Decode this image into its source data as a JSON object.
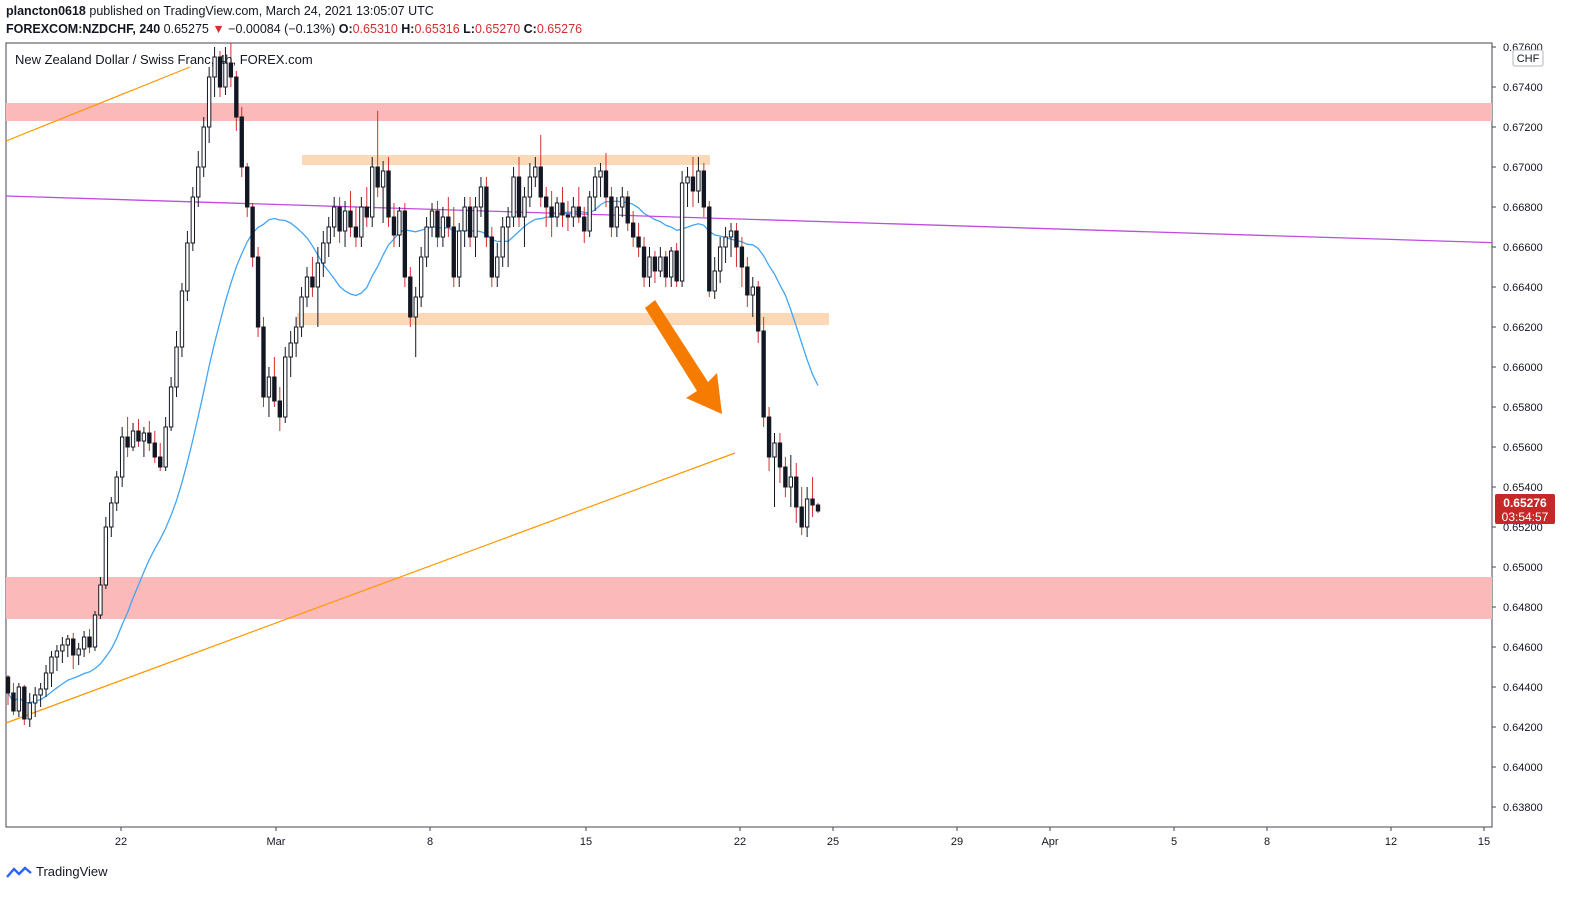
{
  "header": {
    "publisher": "plancton0618",
    "published_on": "published on TradingView.com, March 24, 2021 13:05:07 UTC",
    "symbol": "FOREXCOM:NZDCHF, 240",
    "last": "0.65275",
    "change_arrow": "▼",
    "change": "−0.00084 (−0.13%)",
    "o_label": "O:",
    "o_value": "0.65310",
    "h_label": "H:",
    "h_value": "0.65316",
    "l_label": "L:",
    "l_value": "0.65270",
    "c_label": "C:",
    "c_value": "0.65276",
    "down_color": "#d32f2f"
  },
  "chart_data": {
    "type": "candlestick",
    "title": "New Zealand Dollar / Swiss Franc, 4h, FOREX.com",
    "currency_badge": "CHF",
    "ylim": [
      0.637,
      0.6762
    ],
    "y_ticks": [
      "0.67600",
      "0.67400",
      "0.67200",
      "0.67000",
      "0.66800",
      "0.66600",
      "0.66400",
      "0.66200",
      "0.66000",
      "0.65800",
      "0.65600",
      "0.65400",
      "0.65200",
      "0.65000",
      "0.64800",
      "0.64600",
      "0.64400",
      "0.64200",
      "0.64000",
      "0.63800"
    ],
    "x_ticks": [
      "22",
      "Mar",
      "8",
      "15",
      "22",
      "25",
      "29",
      "Apr",
      "5",
      "8",
      "12",
      "15"
    ],
    "last_price_label": "0.65276",
    "countdown_label": "03:54:57",
    "colors": {
      "up": "#131722",
      "down": "#131722",
      "wick_down": "#d32f2f",
      "ma": "#42a5f5",
      "trendline": "#ff9800",
      "resistance_line": "#c04ce0",
      "zone_red": "#fcb9b9",
      "zone_orange": "#fcd9b6",
      "arrow": "#f57c00",
      "price_tag": "#c62828"
    },
    "series": [
      {
        "name": "",
        "kind": "ohlc",
        "values": [
          [
            0.6445,
            0.6446,
            0.6431,
            0.6437
          ],
          [
            0.6437,
            0.6442,
            0.6426,
            0.6428
          ],
          [
            0.6428,
            0.6442,
            0.6425,
            0.644
          ],
          [
            0.644,
            0.6441,
            0.6421,
            0.6424
          ],
          [
            0.6424,
            0.6437,
            0.642,
            0.6432
          ],
          [
            0.6432,
            0.644,
            0.6425,
            0.6436
          ],
          [
            0.6436,
            0.6442,
            0.643,
            0.6439
          ],
          [
            0.6439,
            0.6451,
            0.6435,
            0.6447
          ],
          [
            0.6447,
            0.6458,
            0.644,
            0.6455
          ],
          [
            0.6455,
            0.6461,
            0.6448,
            0.6458
          ],
          [
            0.6458,
            0.6465,
            0.6452,
            0.6461
          ],
          [
            0.6461,
            0.6466,
            0.6455,
            0.6464
          ],
          [
            0.6464,
            0.6467,
            0.6449,
            0.6456
          ],
          [
            0.6456,
            0.6462,
            0.6451,
            0.6459
          ],
          [
            0.6459,
            0.6468,
            0.6455,
            0.6465
          ],
          [
            0.6465,
            0.6469,
            0.6457,
            0.646
          ],
          [
            0.646,
            0.6478,
            0.6458,
            0.6476
          ],
          [
            0.6476,
            0.6495,
            0.6474,
            0.6491
          ],
          [
            0.6491,
            0.6525,
            0.6489,
            0.652
          ],
          [
            0.652,
            0.6535,
            0.6515,
            0.6532
          ],
          [
            0.6532,
            0.6548,
            0.6528,
            0.6545
          ],
          [
            0.6545,
            0.657,
            0.654,
            0.6565
          ],
          [
            0.6565,
            0.6575,
            0.6555,
            0.656
          ],
          [
            0.656,
            0.6572,
            0.6558,
            0.6568
          ],
          [
            0.6568,
            0.6574,
            0.656,
            0.6563
          ],
          [
            0.6563,
            0.657,
            0.6555,
            0.6567
          ],
          [
            0.6567,
            0.6573,
            0.6558,
            0.6562
          ],
          [
            0.6562,
            0.6568,
            0.6552,
            0.6555
          ],
          [
            0.6555,
            0.6562,
            0.6548,
            0.655
          ],
          [
            0.655,
            0.6575,
            0.6548,
            0.657
          ],
          [
            0.657,
            0.6595,
            0.6568,
            0.659
          ],
          [
            0.659,
            0.6618,
            0.6585,
            0.661
          ],
          [
            0.661,
            0.6642,
            0.6605,
            0.6638
          ],
          [
            0.6638,
            0.6668,
            0.6633,
            0.6662
          ],
          [
            0.6662,
            0.669,
            0.6658,
            0.6685
          ],
          [
            0.6685,
            0.6708,
            0.668,
            0.67
          ],
          [
            0.67,
            0.6725,
            0.6695,
            0.672
          ],
          [
            0.672,
            0.675,
            0.6712,
            0.6745
          ],
          [
            0.6745,
            0.676,
            0.6735,
            0.6755
          ],
          [
            0.6755,
            0.6758,
            0.6735,
            0.674
          ],
          [
            0.674,
            0.676,
            0.6736,
            0.6752
          ],
          [
            0.6752,
            0.6762,
            0.674,
            0.6745
          ],
          [
            0.6745,
            0.6748,
            0.6718,
            0.6725
          ],
          [
            0.6725,
            0.673,
            0.6695,
            0.67
          ],
          [
            0.67,
            0.6702,
            0.6675,
            0.668
          ],
          [
            0.668,
            0.6682,
            0.665,
            0.6655
          ],
          [
            0.6655,
            0.666,
            0.6615,
            0.662
          ],
          [
            0.662,
            0.6625,
            0.658,
            0.6585
          ],
          [
            0.6585,
            0.66,
            0.6575,
            0.6595
          ],
          [
            0.6595,
            0.6605,
            0.658,
            0.6583
          ],
          [
            0.6583,
            0.659,
            0.6568,
            0.6575
          ],
          [
            0.6575,
            0.661,
            0.6572,
            0.6605
          ],
          [
            0.6605,
            0.6618,
            0.6595,
            0.6612
          ],
          [
            0.6612,
            0.6625,
            0.6605,
            0.662
          ],
          [
            0.662,
            0.664,
            0.6615,
            0.6635
          ],
          [
            0.6635,
            0.665,
            0.663,
            0.6645
          ],
          [
            0.6645,
            0.6655,
            0.6635,
            0.664
          ],
          [
            0.664,
            0.666,
            0.662,
            0.6652
          ],
          [
            0.6652,
            0.6668,
            0.6645,
            0.6662
          ],
          [
            0.6662,
            0.6675,
            0.6655,
            0.667
          ],
          [
            0.667,
            0.6685,
            0.6665,
            0.668
          ],
          [
            0.668,
            0.6685,
            0.6662,
            0.6668
          ],
          [
            0.6668,
            0.6683,
            0.666,
            0.6678
          ],
          [
            0.6678,
            0.6688,
            0.6665,
            0.667
          ],
          [
            0.667,
            0.668,
            0.666,
            0.6665
          ],
          [
            0.6665,
            0.6685,
            0.666,
            0.668
          ],
          [
            0.668,
            0.669,
            0.667,
            0.6675
          ],
          [
            0.6675,
            0.6705,
            0.667,
            0.67
          ],
          [
            0.67,
            0.6728,
            0.6685,
            0.669
          ],
          [
            0.669,
            0.6703,
            0.6672,
            0.6698
          ],
          [
            0.6698,
            0.6705,
            0.667,
            0.6675
          ],
          [
            0.6675,
            0.6682,
            0.666,
            0.6666
          ],
          [
            0.6666,
            0.668,
            0.666,
            0.6678
          ],
          [
            0.6678,
            0.6682,
            0.664,
            0.6645
          ],
          [
            0.6645,
            0.665,
            0.662,
            0.6625
          ],
          [
            0.6625,
            0.664,
            0.6605,
            0.6635
          ],
          [
            0.6635,
            0.666,
            0.663,
            0.6655
          ],
          [
            0.6655,
            0.6675,
            0.665,
            0.667
          ],
          [
            0.667,
            0.6682,
            0.6665,
            0.6678
          ],
          [
            0.6678,
            0.6683,
            0.666,
            0.6665
          ],
          [
            0.6665,
            0.668,
            0.666,
            0.6675
          ],
          [
            0.6675,
            0.6685,
            0.6665,
            0.667
          ],
          [
            0.667,
            0.668,
            0.664,
            0.6645
          ],
          [
            0.6645,
            0.6672,
            0.664,
            0.6668
          ],
          [
            0.6668,
            0.6685,
            0.666,
            0.668
          ],
          [
            0.668,
            0.6685,
            0.666,
            0.6665
          ],
          [
            0.6665,
            0.6685,
            0.6655,
            0.668
          ],
          [
            0.668,
            0.6695,
            0.6675,
            0.669
          ],
          [
            0.669,
            0.6695,
            0.666,
            0.6665
          ],
          [
            0.6665,
            0.667,
            0.664,
            0.6645
          ],
          [
            0.6645,
            0.6662,
            0.664,
            0.6655
          ],
          [
            0.6655,
            0.6675,
            0.665,
            0.667
          ],
          [
            0.667,
            0.668,
            0.665,
            0.6675
          ],
          [
            0.6675,
            0.67,
            0.667,
            0.6695
          ],
          [
            0.6695,
            0.6705,
            0.667,
            0.6675
          ],
          [
            0.6675,
            0.669,
            0.666,
            0.6685
          ],
          [
            0.6685,
            0.6702,
            0.668,
            0.6695
          ],
          [
            0.6695,
            0.6705,
            0.669,
            0.67
          ],
          [
            0.67,
            0.6716,
            0.668,
            0.6685
          ],
          [
            0.6685,
            0.669,
            0.667,
            0.668
          ],
          [
            0.668,
            0.6688,
            0.6665,
            0.6675
          ],
          [
            0.6675,
            0.6685,
            0.667,
            0.6682
          ],
          [
            0.6682,
            0.669,
            0.667,
            0.6676
          ],
          [
            0.6676,
            0.6683,
            0.6668,
            0.6675
          ],
          [
            0.6675,
            0.6685,
            0.667,
            0.668
          ],
          [
            0.668,
            0.669,
            0.6672,
            0.6675
          ],
          [
            0.6675,
            0.668,
            0.6662,
            0.6668
          ],
          [
            0.6668,
            0.6688,
            0.6665,
            0.6685
          ],
          [
            0.6685,
            0.67,
            0.6678,
            0.6695
          ],
          [
            0.6695,
            0.6702,
            0.6685,
            0.6698
          ],
          [
            0.6698,
            0.6707,
            0.668,
            0.6685
          ],
          [
            0.6685,
            0.669,
            0.6665,
            0.667
          ],
          [
            0.667,
            0.6685,
            0.6665,
            0.668
          ],
          [
            0.668,
            0.669,
            0.6675,
            0.6685
          ],
          [
            0.6685,
            0.6688,
            0.6668,
            0.6672
          ],
          [
            0.6672,
            0.6678,
            0.666,
            0.6665
          ],
          [
            0.6665,
            0.6672,
            0.6655,
            0.666
          ],
          [
            0.666,
            0.6665,
            0.664,
            0.6645
          ],
          [
            0.6645,
            0.666,
            0.664,
            0.6655
          ],
          [
            0.6655,
            0.6658,
            0.6642,
            0.6648
          ],
          [
            0.6648,
            0.666,
            0.6645,
            0.6655
          ],
          [
            0.6655,
            0.6658,
            0.664,
            0.6645
          ],
          [
            0.6645,
            0.666,
            0.664,
            0.6658
          ],
          [
            0.6658,
            0.6662,
            0.664,
            0.6643
          ],
          [
            0.6643,
            0.6698,
            0.664,
            0.6692
          ],
          [
            0.6692,
            0.67,
            0.668,
            0.6695
          ],
          [
            0.6695,
            0.6705,
            0.668,
            0.6688
          ],
          [
            0.6688,
            0.6705,
            0.6682,
            0.6698
          ],
          [
            0.6698,
            0.6702,
            0.6675,
            0.668
          ],
          [
            0.668,
            0.6683,
            0.6635,
            0.6638
          ],
          [
            0.6638,
            0.6655,
            0.6634,
            0.6648
          ],
          [
            0.6648,
            0.6665,
            0.6642,
            0.666
          ],
          [
            0.666,
            0.667,
            0.6652,
            0.6665
          ],
          [
            0.6665,
            0.6672,
            0.6655,
            0.6668
          ],
          [
            0.6668,
            0.6672,
            0.665,
            0.666
          ],
          [
            0.666,
            0.6665,
            0.664,
            0.665
          ],
          [
            0.665,
            0.6655,
            0.663,
            0.6636
          ],
          [
            0.6636,
            0.6645,
            0.6625,
            0.664
          ],
          [
            0.664,
            0.6643,
            0.6612,
            0.6618
          ],
          [
            0.6618,
            0.6625,
            0.657,
            0.6575
          ],
          [
            0.6575,
            0.658,
            0.6548,
            0.6555
          ],
          [
            0.6555,
            0.6567,
            0.653,
            0.6562
          ],
          [
            0.6562,
            0.6567,
            0.6542,
            0.655
          ],
          [
            0.655,
            0.6555,
            0.6535,
            0.654
          ],
          [
            0.654,
            0.6556,
            0.653,
            0.6545
          ],
          [
            0.6545,
            0.6552,
            0.6522,
            0.653
          ],
          [
            0.653,
            0.654,
            0.6516,
            0.652
          ],
          [
            0.652,
            0.654,
            0.6515,
            0.6534
          ],
          [
            0.6534,
            0.6545,
            0.6525,
            0.6531
          ],
          [
            0.6531,
            0.6532,
            0.6527,
            0.6528
          ]
        ]
      },
      {
        "name": "",
        "kind": "moving_average"
      }
    ]
  }
}
